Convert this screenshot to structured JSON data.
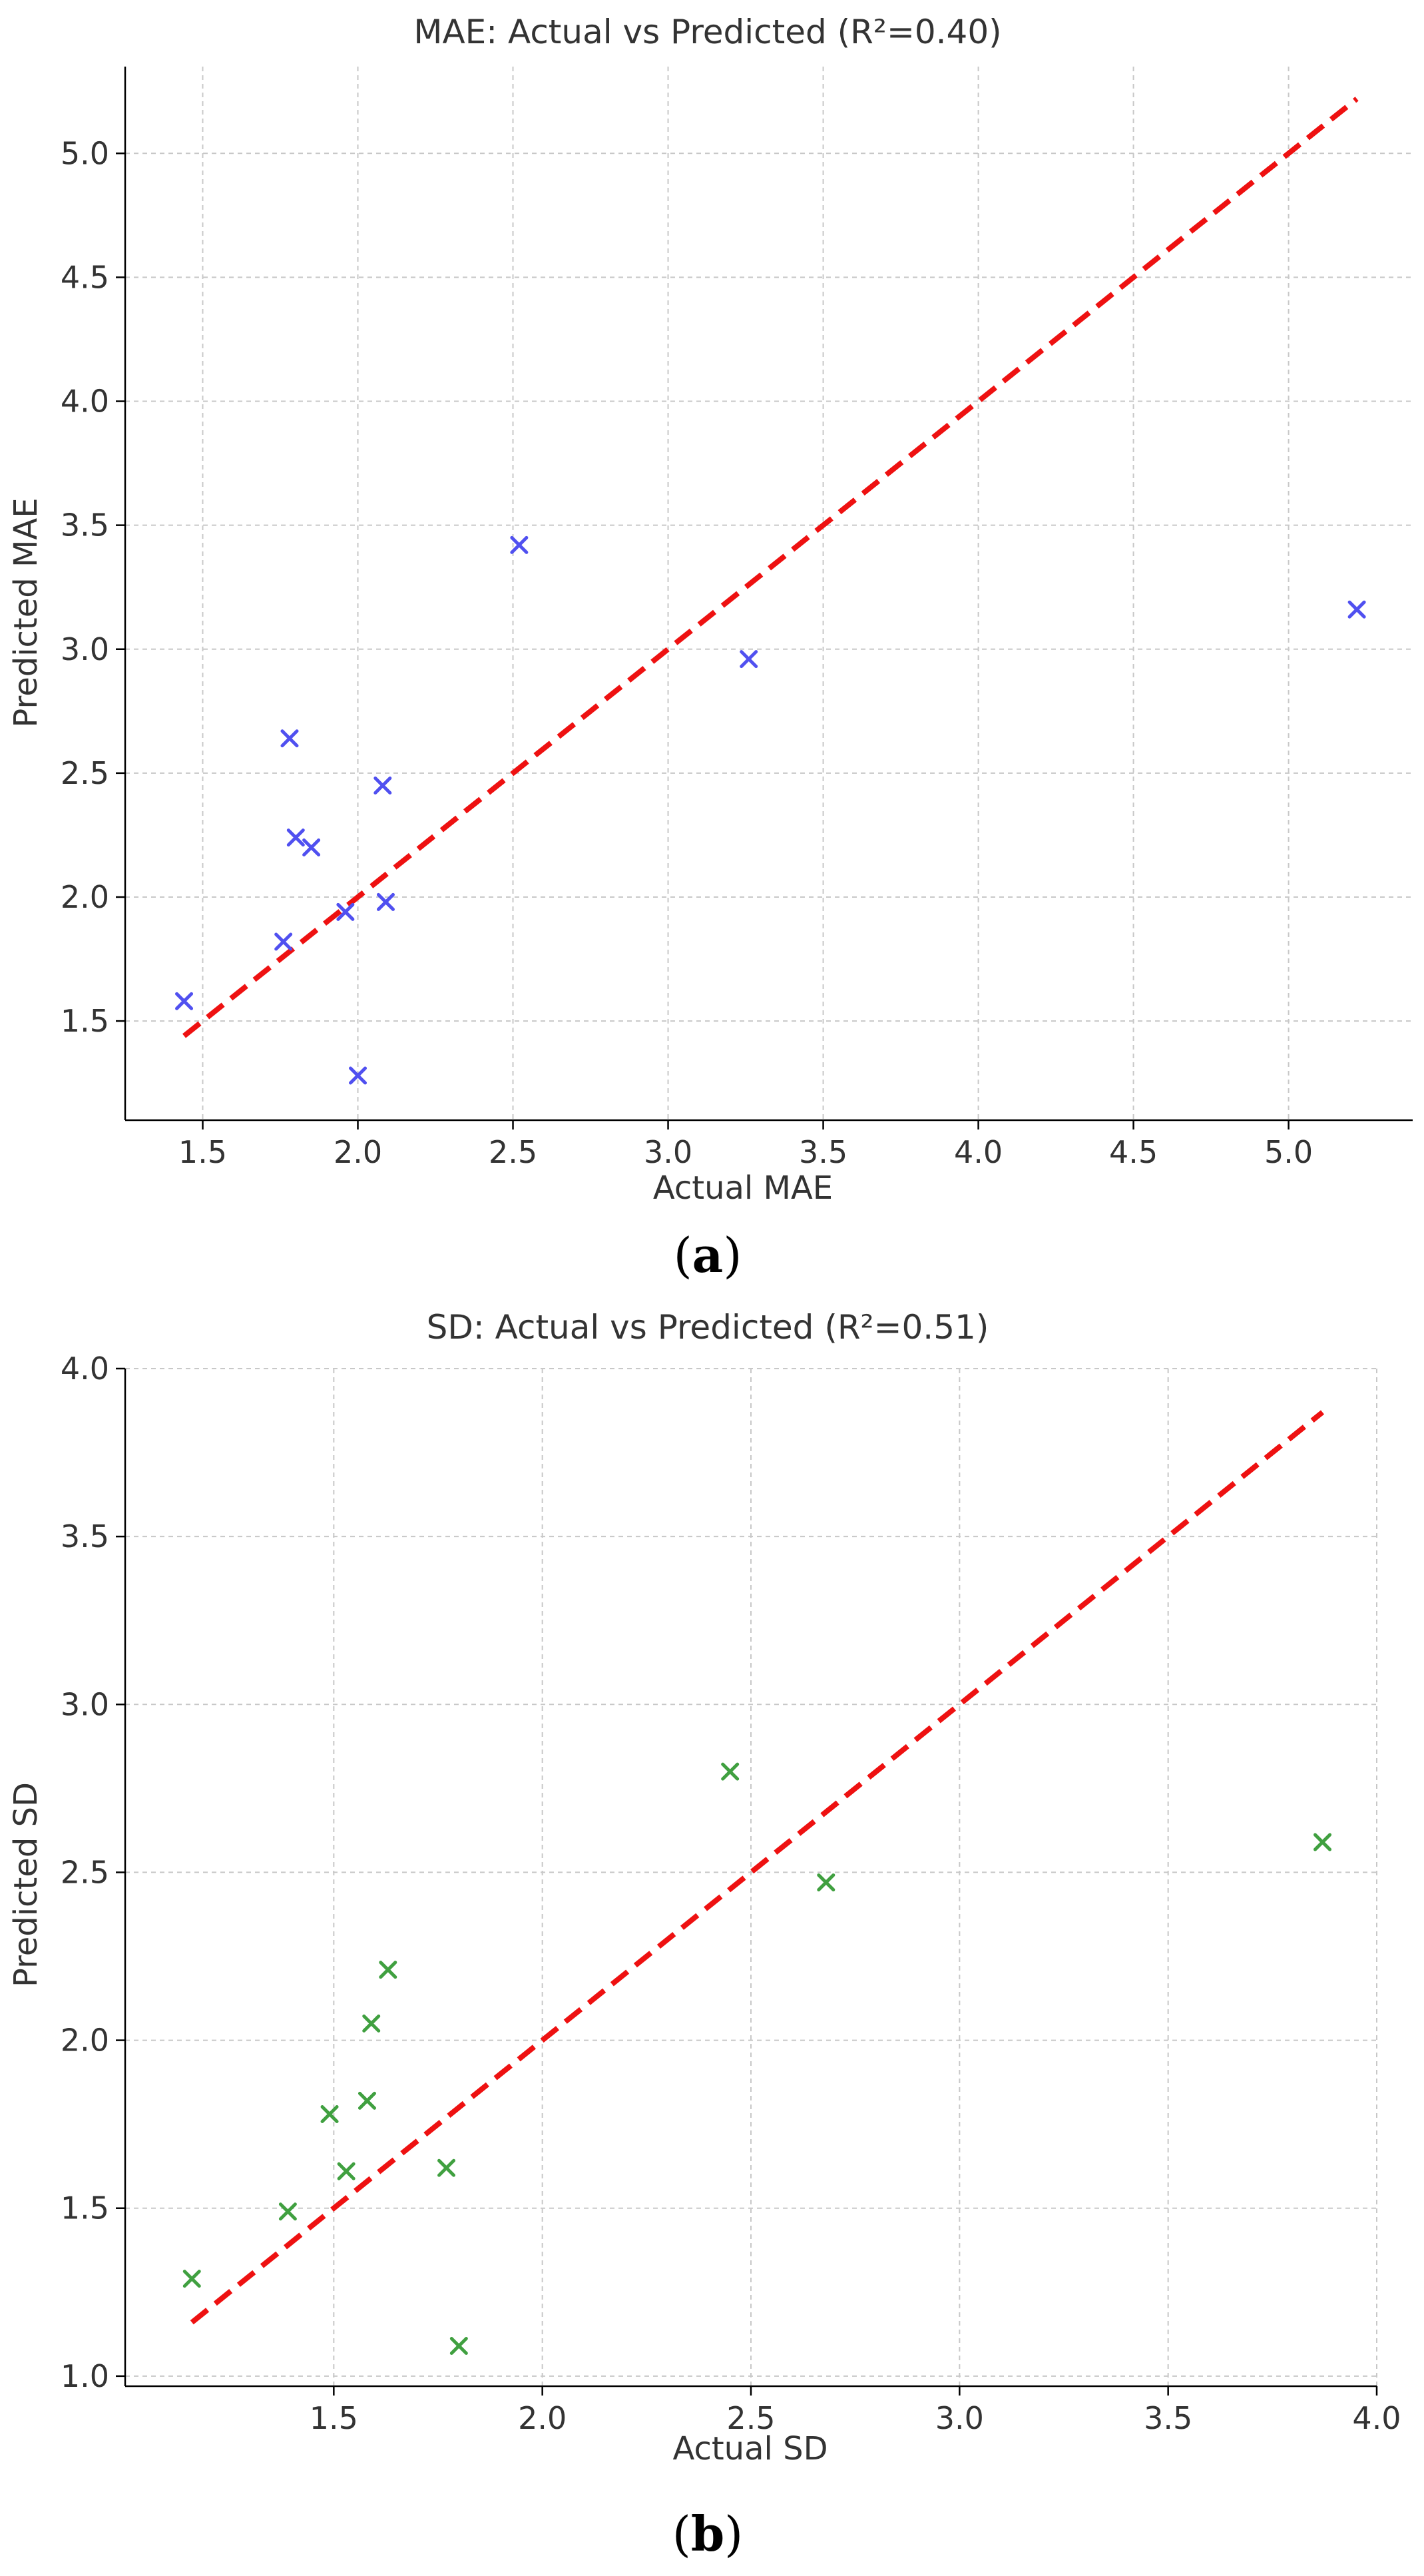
{
  "chart_data": [
    {
      "type": "scatter",
      "title": "MAE: Actual vs Predicted (R²=0.40)",
      "xlabel": "Actual MAE",
      "ylabel": "Predicted MAE",
      "xlim": [
        1.25,
        5.4
      ],
      "ylim": [
        1.1,
        5.35
      ],
      "xticks": [
        1.5,
        2.0,
        2.5,
        3.0,
        3.5,
        4.0,
        4.5,
        5.0
      ],
      "yticks": [
        1.5,
        2.0,
        2.5,
        3.0,
        3.5,
        4.0,
        4.5,
        5.0
      ],
      "grid": true,
      "marker": "x",
      "marker_color": "#5050f0",
      "series": [
        {
          "name": "Actual vs Predicted",
          "x": [
            1.44,
            1.76,
            1.78,
            1.8,
            1.85,
            1.96,
            2.0,
            2.08,
            2.09,
            2.52,
            3.26,
            5.22
          ],
          "y": [
            1.58,
            1.82,
            2.64,
            2.24,
            2.2,
            1.94,
            1.28,
            2.45,
            1.98,
            3.42,
            2.96,
            3.16
          ]
        }
      ],
      "reference_line": {
        "style": "dashed",
        "color": "#ee1111",
        "x": [
          1.44,
          5.22
        ],
        "y": [
          1.44,
          5.22
        ]
      },
      "caption": {
        "open": "(",
        "letter": "a",
        "close": ")"
      }
    },
    {
      "type": "scatter",
      "title": "SD: Actual vs Predicted (R²=0.51)",
      "xlabel": "Actual SD",
      "ylabel": "Predicted SD",
      "xlim": [
        1.0,
        4.0
      ],
      "ylim": [
        0.97,
        4.0
      ],
      "xticks": [
        1.5,
        2.0,
        2.5,
        3.0,
        3.5,
        4.0
      ],
      "yticks": [
        1.0,
        1.5,
        2.0,
        2.5,
        3.0,
        3.5,
        4.0
      ],
      "grid": true,
      "marker": "x",
      "marker_color": "#40a040",
      "series": [
        {
          "name": "Actual vs Predicted",
          "x": [
            1.16,
            1.39,
            1.49,
            1.53,
            1.58,
            1.59,
            1.63,
            1.77,
            1.8,
            2.45,
            2.68,
            3.87
          ],
          "y": [
            1.29,
            1.49,
            1.78,
            1.61,
            1.82,
            2.05,
            2.21,
            1.62,
            1.09,
            2.8,
            2.47,
            2.59
          ]
        }
      ],
      "reference_line": {
        "style": "dashed",
        "color": "#ee1111",
        "x": [
          1.16,
          3.87
        ],
        "y": [
          1.16,
          3.87
        ]
      },
      "caption": {
        "open": "(",
        "letter": "b",
        "close": ")"
      }
    }
  ]
}
